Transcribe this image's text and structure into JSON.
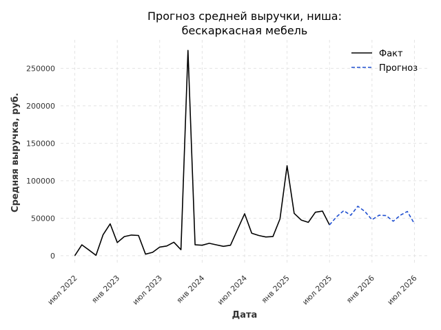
{
  "chart_data": {
    "type": "line",
    "title": "Прогноз средней выручки, ниша:\nбескаркасная мебель",
    "title_lines": [
      "Прогноз средней выручки, ниша:",
      "бескаркасная мебель"
    ],
    "xlabel": "Дата",
    "ylabel": "Средняя выручка, руб.",
    "x_ticks": [
      "2022-07",
      "2023-01",
      "2023-07",
      "2024-01",
      "2024-07",
      "2025-01",
      "2025-07",
      "2026-01",
      "2026-07"
    ],
    "x_tick_labels": [
      "июл 2022",
      "янв 2023",
      "июл 2023",
      "янв 2024",
      "июл 2024",
      "янв 2025",
      "июл 2025",
      "янв 2026",
      "июл 2026"
    ],
    "y_ticks": [
      0,
      50000,
      100000,
      150000,
      200000,
      250000
    ],
    "y_tick_labels": [
      "0",
      "50000",
      "100000",
      "150000",
      "200000",
      "250000"
    ],
    "xlim": [
      "2022-05",
      "2026-09"
    ],
    "ylim": [
      -12000,
      288000
    ],
    "grid": true,
    "legend_position": "top-right",
    "series": [
      {
        "name": "Факт",
        "color": "#000000",
        "dash": "solid",
        "x": [
          "2022-07",
          "2022-08",
          "2022-09",
          "2022-10",
          "2022-11",
          "2022-12",
          "2023-01",
          "2023-02",
          "2023-03",
          "2023-04",
          "2023-05",
          "2023-06",
          "2023-07",
          "2023-08",
          "2023-09",
          "2023-10",
          "2023-11",
          "2023-12",
          "2024-01",
          "2024-02",
          "2024-03",
          "2024-04",
          "2024-05",
          "2024-06",
          "2024-07",
          "2024-08",
          "2024-09",
          "2024-10",
          "2024-11",
          "2024-12",
          "2025-01",
          "2025-02",
          "2025-03",
          "2025-04",
          "2025-05",
          "2025-06",
          "2025-07"
        ],
        "values": [
          0,
          14500,
          7500,
          500,
          28000,
          42500,
          17500,
          25500,
          27500,
          27000,
          2000,
          4500,
          11500,
          13000,
          18000,
          8000,
          274000,
          14500,
          14000,
          16500,
          14500,
          12500,
          14000,
          35000,
          56000,
          30000,
          27000,
          25000,
          25500,
          49000,
          120000,
          56500,
          47500,
          44500,
          58000,
          59500,
          41000
        ]
      },
      {
        "name": "Прогноз",
        "color": "#1f4fd0",
        "dash": "dashed",
        "x": [
          "2025-07",
          "2025-08",
          "2025-09",
          "2025-10",
          "2025-11",
          "2025-12",
          "2026-01",
          "2026-02",
          "2026-03",
          "2026-04",
          "2026-05",
          "2026-06",
          "2026-07"
        ],
        "values": [
          41000,
          52000,
          60000,
          54000,
          66000,
          59000,
          48000,
          54000,
          53500,
          46000,
          54000,
          59000,
          42500
        ]
      }
    ]
  }
}
